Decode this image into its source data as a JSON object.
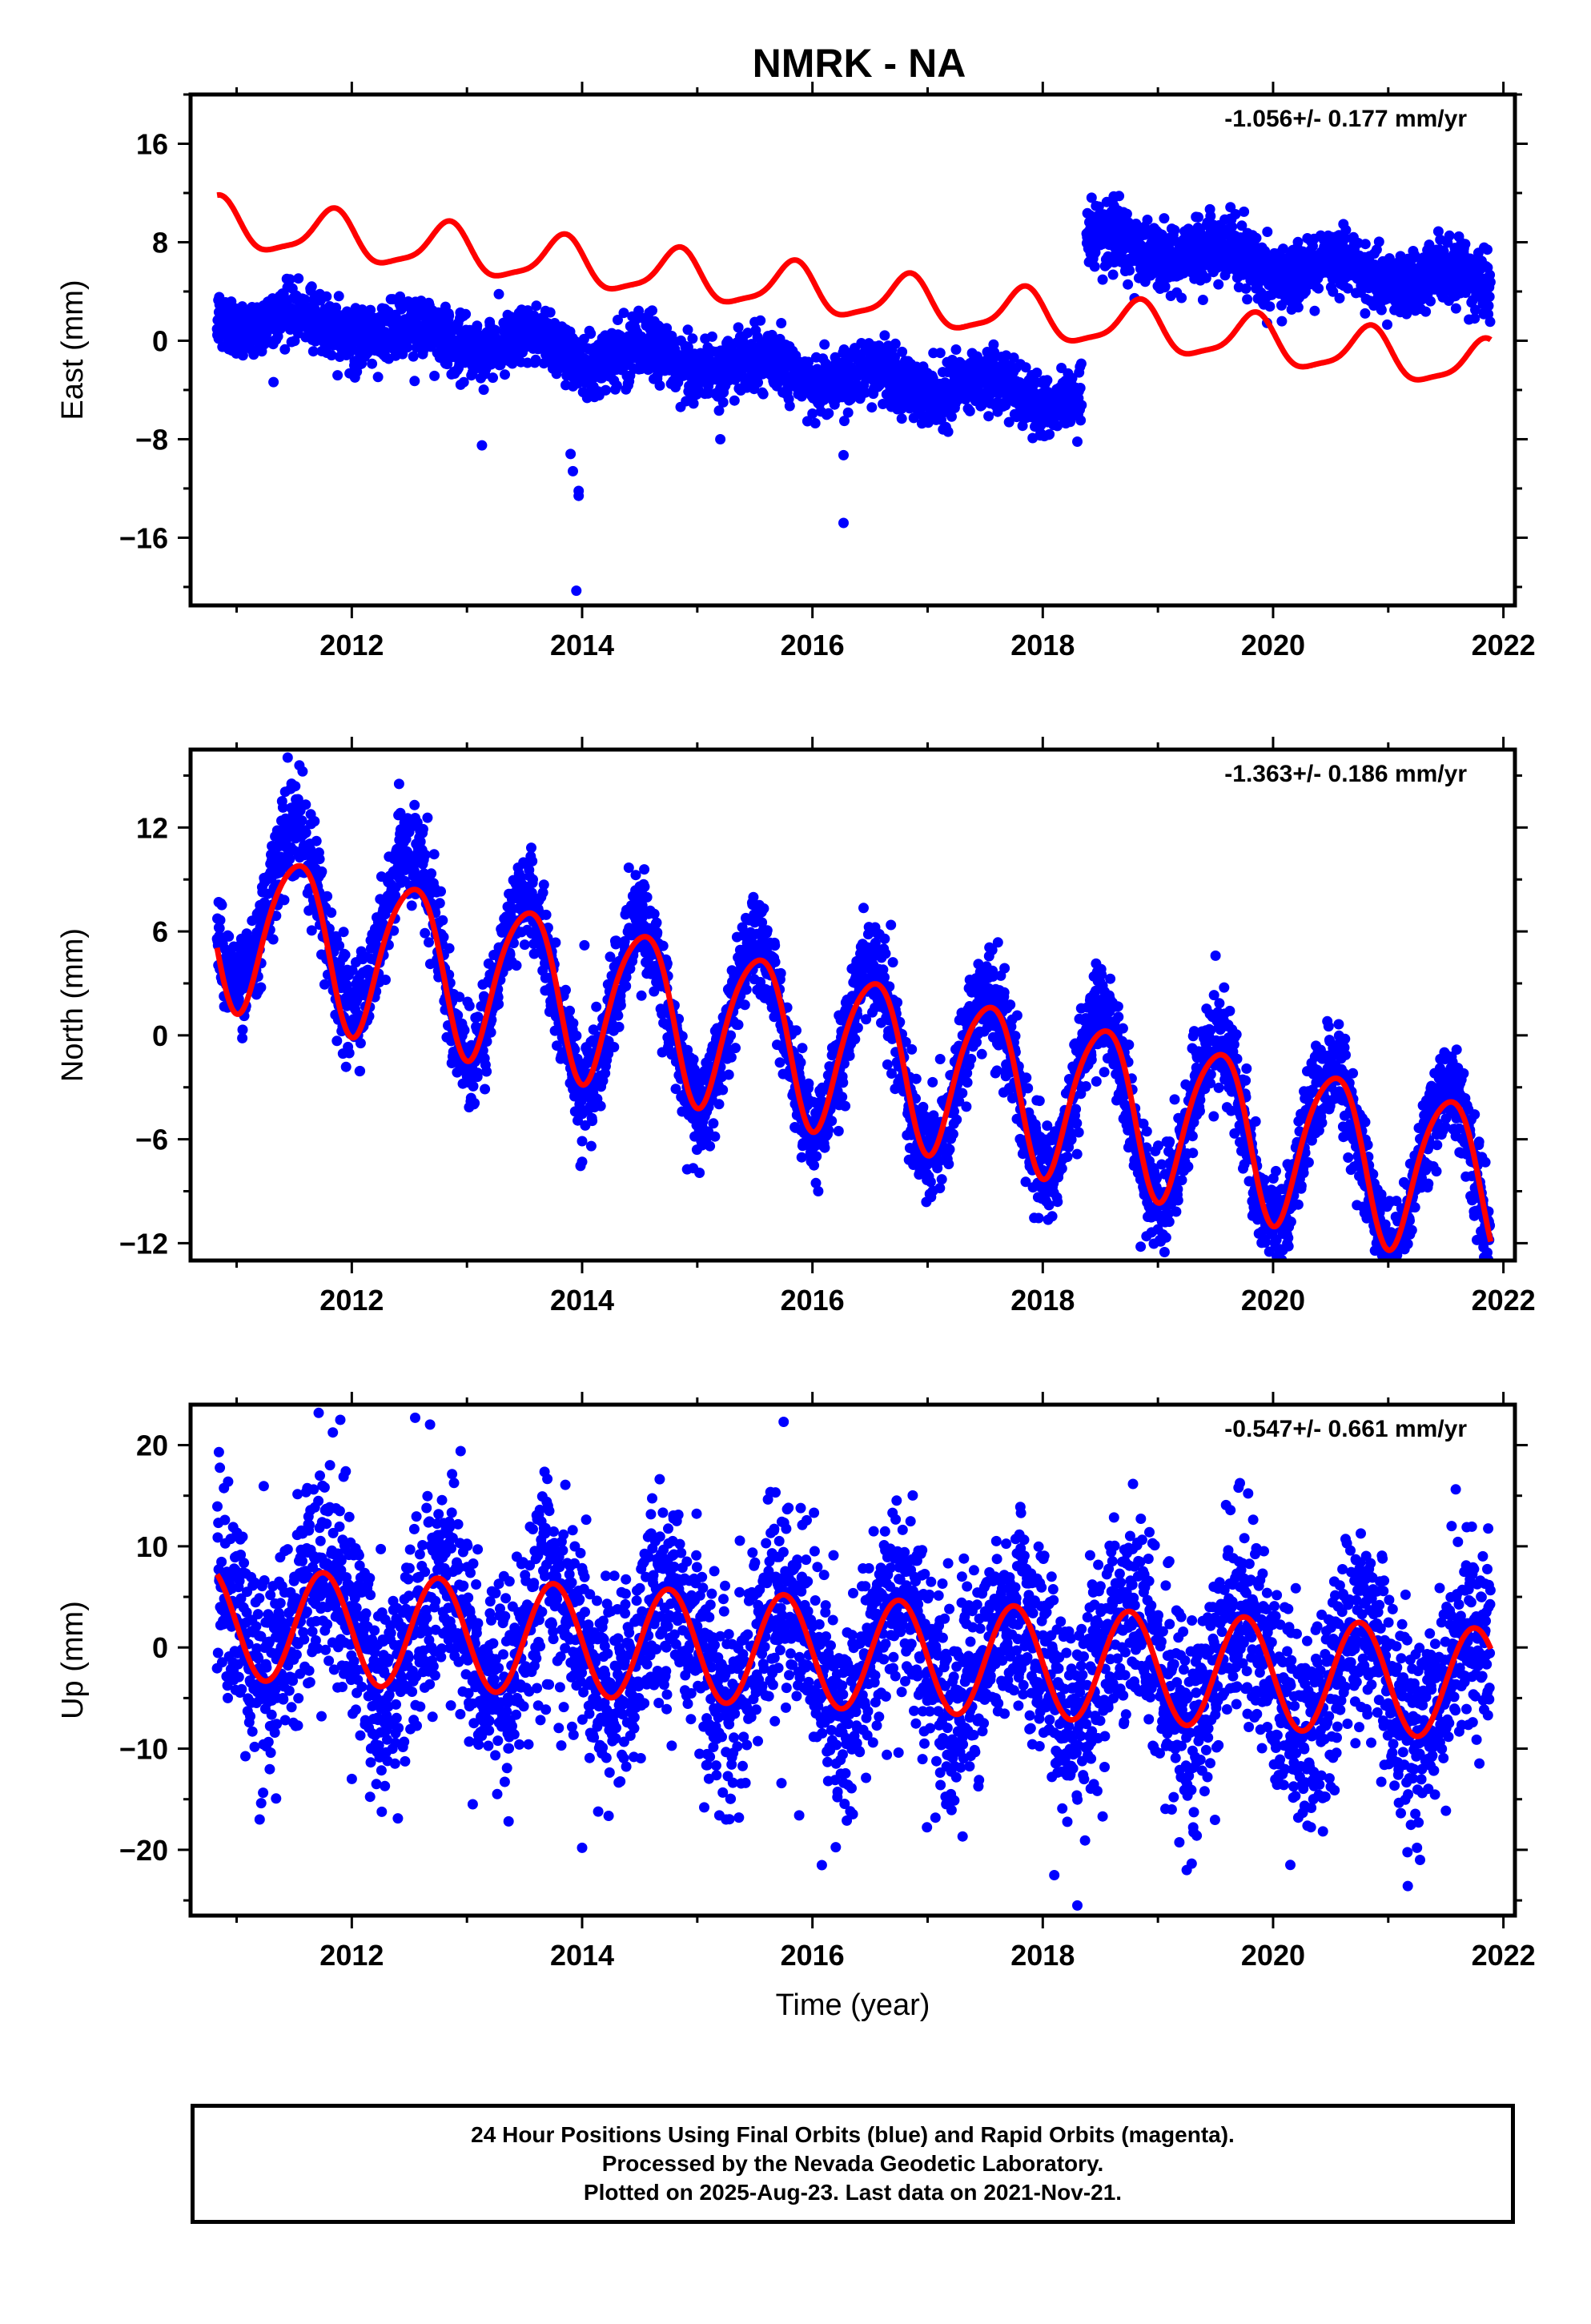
{
  "title": "NMRK - NA",
  "chart_data": [
    {
      "type": "scatter",
      "ylabel": "East (mm)",
      "rate_label": "-1.056+/- 0.177 mm/yr",
      "xlim": [
        2010.6,
        2022.1
      ],
      "ylim": [
        -21.5,
        20
      ],
      "yticks": [
        -16,
        -8,
        0,
        8,
        16
      ],
      "xticks": [
        2012,
        2014,
        2016,
        2018,
        2020,
        2022
      ],
      "point_color": "#0000ff",
      "model_color": "#ff0000",
      "segments": [
        {
          "start": 2010.83,
          "end": 2018.34,
          "base": 2.0,
          "rate": -0.9,
          "noise": 1.2,
          "annual": 0.8,
          "semi": 0.3
        },
        {
          "start": 2018.38,
          "end": 2021.89,
          "base": 15.5,
          "rate": -1.0,
          "noise": 1.2,
          "annual": 0.8,
          "semi": 0.3
        }
      ],
      "model": {
        "base": 9.5,
        "rate": -1.056,
        "annual_amp": 1.9,
        "annual_phase": 0.58,
        "semi_amp": 0.5,
        "semi_phase": 0.25,
        "start": 2010.83,
        "end": 2021.89
      },
      "outliers": [
        [
          2013.95,
          -20.3
        ],
        [
          2013.97,
          -12.2
        ],
        [
          2013.97,
          -12.6
        ],
        [
          2013.9,
          -9.2
        ],
        [
          2013.92,
          -10.6
        ],
        [
          2016.27,
          -14.8
        ],
        [
          2013.13,
          -8.5
        ],
        [
          2016.27,
          -9.3
        ],
        [
          2019.12,
          9.1
        ],
        [
          2020.9,
          7.4
        ],
        [
          2021.86,
          7.4
        ],
        [
          2018.3,
          -8.2
        ],
        [
          2015.2,
          -8.0
        ],
        [
          2017.05,
          -1.0
        ]
      ]
    },
    {
      "type": "scatter",
      "ylabel": "North (mm)",
      "rate_label": "-1.363+/- 0.186 mm/yr",
      "xlim": [
        2010.6,
        2022.1
      ],
      "ylim": [
        -13,
        16.5
      ],
      "yticks": [
        -12,
        -6,
        0,
        6,
        12
      ],
      "xticks": [
        2012,
        2014,
        2016,
        2018,
        2020,
        2022
      ],
      "point_color": "#0000ff",
      "model_color": "#ff0000",
      "segments": [
        {
          "start": 2010.83,
          "end": 2021.89,
          "base": 6.8,
          "rate": -1.363,
          "noise": 1.4,
          "annual": 4.8,
          "semi": 0.0
        }
      ],
      "model": {
        "base": 6.6,
        "rate": -1.363,
        "annual_amp": 4.6,
        "annual_phase": 0.27,
        "semi_amp": 0.6,
        "semi_phase": 0.1,
        "start": 2010.83,
        "end": 2021.89
      },
      "outliers": [
        [
          2014.0,
          -7.3
        ],
        [
          2018.85,
          -12.2
        ],
        [
          2018.9,
          -11.6
        ],
        [
          2014.02,
          5.2
        ],
        [
          2019.5,
          4.6
        ],
        [
          2016.05,
          -9.0
        ],
        [
          2019.0,
          -11.2
        ]
      ]
    },
    {
      "type": "scatter",
      "ylabel": "Up (mm)",
      "rate_label": "-0.547+/- 0.661 mm/yr",
      "xlabel": "Time (year)",
      "xlim": [
        2010.6,
        2022.1
      ],
      "ylim": [
        -26.5,
        24
      ],
      "yticks": [
        -20,
        -10,
        0,
        10,
        20
      ],
      "xticks": [
        2012,
        2014,
        2016,
        2018,
        2020,
        2022
      ],
      "point_color": "#0000ff",
      "model_color": "#ff0000",
      "segments": [
        {
          "start": 2010.83,
          "end": 2021.89,
          "base": 2.5,
          "rate": -0.55,
          "noise": 5.0,
          "annual": 5.5,
          "semi": 0.0
        }
      ],
      "model": {
        "base": 2.4,
        "rate": -0.547,
        "annual_amp": 5.5,
        "annual_phase": 0.5,
        "semi_amp": 0.0,
        "semi_phase": 0.0,
        "start": 2010.83,
        "end": 2021.89
      },
      "outliers": [
        [
          2011.2,
          -17.0
        ],
        [
          2011.9,
          22.5
        ],
        [
          2012.55,
          22.7
        ],
        [
          2014.0,
          -19.8
        ],
        [
          2015.75,
          22.3
        ],
        [
          2018.1,
          -22.5
        ],
        [
          2018.3,
          -25.5
        ],
        [
          2019.25,
          -22.0
        ],
        [
          2020.15,
          -21.5
        ],
        [
          2021.25,
          -19.8
        ],
        [
          2013.05,
          -15.5
        ],
        [
          2015.25,
          -17.0
        ],
        [
          2012.0,
          -13.0
        ],
        [
          2019.7,
          15.8
        ]
      ]
    }
  ],
  "footer": {
    "line1": "24 Hour Positions Using Final Orbits (blue) and Rapid Orbits (magenta).",
    "line2": "Processed by the Nevada Geodetic Laboratory.",
    "line3": "Plotted on 2025-Aug-23. Last data on 2021-Nov-21."
  }
}
